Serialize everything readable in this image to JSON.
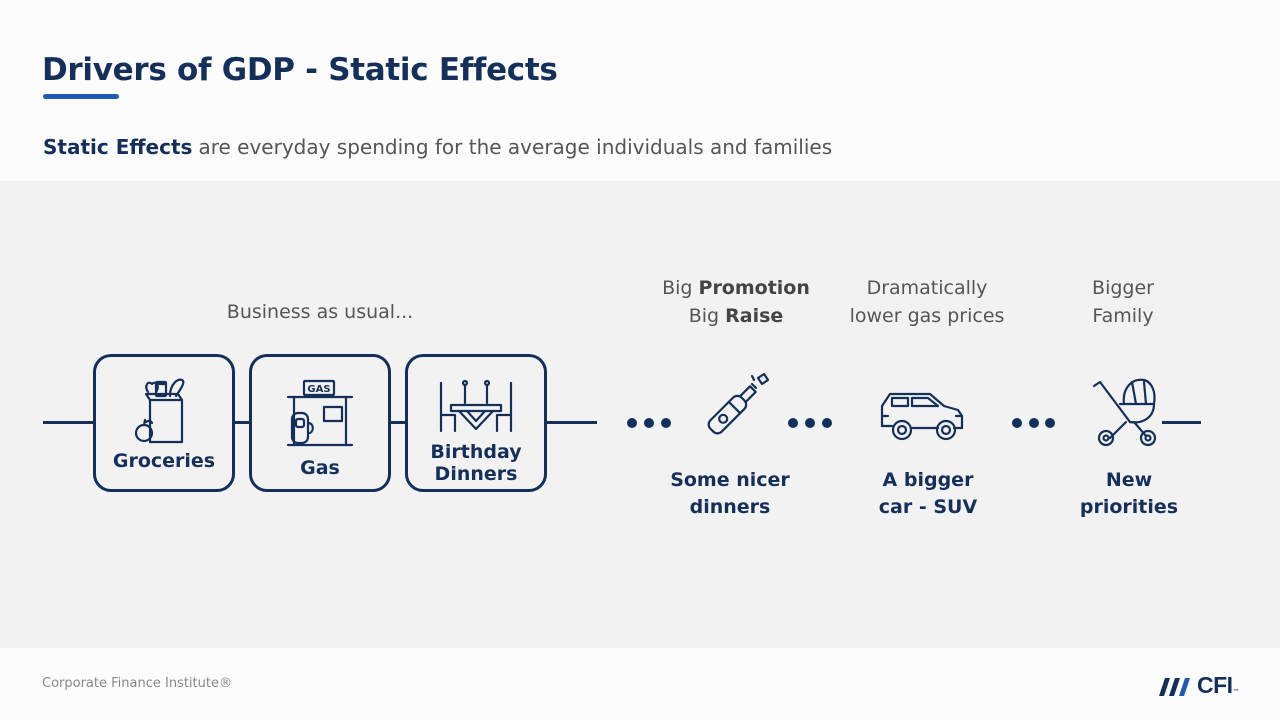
{
  "title": "Drivers of GDP - Static Effects",
  "subtitle": {
    "bold": "Static Effects",
    "rest": "are everyday spending for the average individuals and families"
  },
  "business_caption": "Business as usual...",
  "boxes": [
    {
      "label": "Groceries",
      "icon": "grocery-bag-icon"
    },
    {
      "label": "Gas",
      "icon": "gas-station-icon"
    },
    {
      "label_line1": "Birthday",
      "label_line2": "Dinners",
      "icon": "dinner-table-icon"
    }
  ],
  "events": [
    {
      "top_line1_pre": "Big",
      "top_line1_bold": "Promotion",
      "top_line2_pre": "Big",
      "top_line2_bold": "Raise",
      "bottom_line1": "Some nicer",
      "bottom_line2": "dinners",
      "icon": "champagne-bottle-icon"
    },
    {
      "top_line1": "Dramatically",
      "top_line2": "lower gas prices",
      "bottom_line1": "A bigger",
      "bottom_line2": "car - SUV",
      "icon": "suv-car-icon"
    },
    {
      "top_line1": "Bigger",
      "top_line2": "Family",
      "bottom_line1": "New",
      "bottom_line2": "priorities",
      "icon": "baby-stroller-icon"
    }
  ],
  "gas_sign_text": "GAS",
  "footer": "Corporate Finance Institute®",
  "logo": {
    "text": "CFI",
    "tm": "™"
  },
  "colors": {
    "navy": "#14305a",
    "accent": "#1f5bb5",
    "panel": "#f2f2f2"
  }
}
